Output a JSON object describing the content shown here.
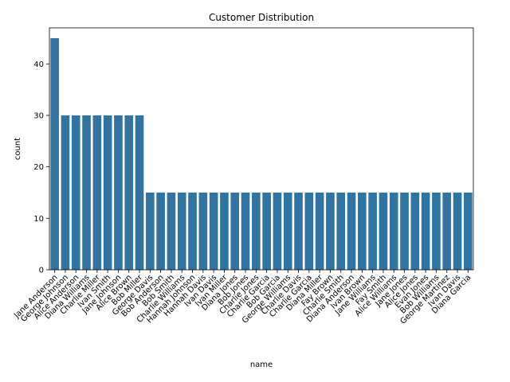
{
  "chart_data": {
    "type": "bar",
    "title": "Customer Distribution",
    "xlabel": "name",
    "ylabel": "count",
    "ylim": [
      0,
      47
    ],
    "yticks": [
      0,
      10,
      20,
      30,
      40
    ],
    "grid": false,
    "bar_color": "#3274a1",
    "categories": [
      "Jane Anderson",
      "George Johnson",
      "Alice Anderson",
      "Diana Williams",
      "Charlie Miller",
      "Ivan Smith",
      "Jane Johnson",
      "Alice Brown",
      "Bob Miller",
      "George Davis",
      "Bob Anderson",
      "Bob Smith",
      "Charlie Williams",
      "Hannah Johnson",
      "Hannah Davis",
      "Ivan Davis",
      "Ivan Miller",
      "Diana Jones",
      "Bob Jones",
      "Charlie Jones",
      "Charlie Garcia",
      "Bob Garcia",
      "George Williams",
      "Charlie Davis",
      "Charlie Garcia",
      "Diana Miller",
      "Fay Brown",
      "Charlie Smith",
      "Diana Anderson",
      "Ivan Brown",
      "Jane Williams",
      "Fay Smith",
      "Alice Williams",
      "Jane Jones",
      "Alice Jones",
      "Evan Jones",
      "Bob Williams",
      "George Martinez",
      "Ivan Davis",
      "Diana Garcia"
    ],
    "values": [
      45,
      30,
      30,
      30,
      30,
      30,
      30,
      30,
      30,
      15,
      15,
      15,
      15,
      15,
      15,
      15,
      15,
      15,
      15,
      15,
      15,
      15,
      15,
      15,
      15,
      15,
      15,
      15,
      15,
      15,
      15,
      15,
      15,
      15,
      15,
      15,
      15,
      15,
      15,
      15
    ]
  }
}
